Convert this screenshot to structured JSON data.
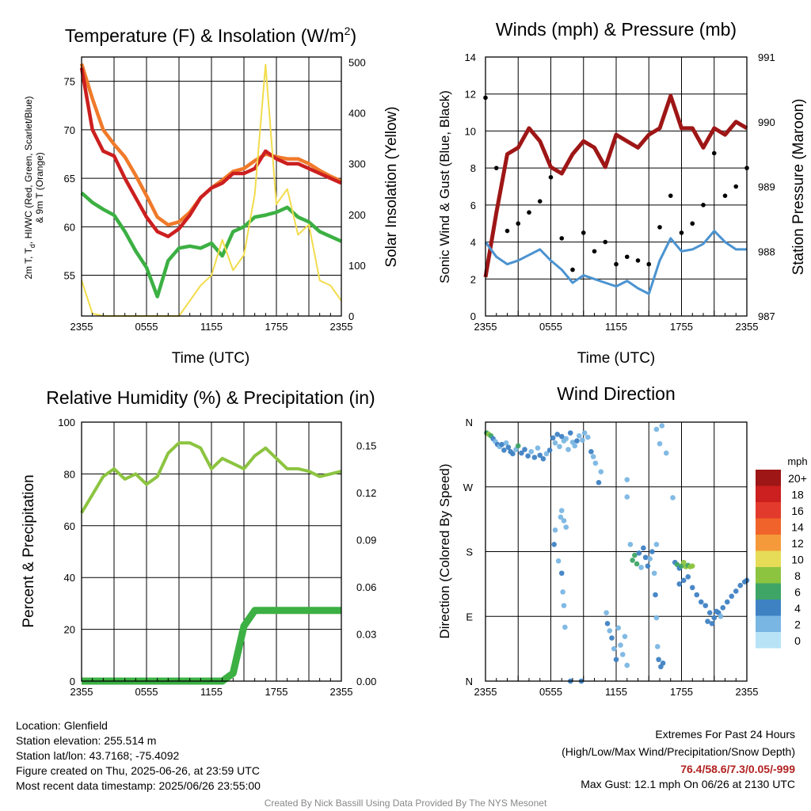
{
  "footer": {
    "location": "Location: Glenfield",
    "elevation": "Station elevation: 255.514 m",
    "latlon": "Station lat/lon: 43.7168; -75.4092",
    "created": "Figure created on Thu, 2025-06-26, at 23:59 UTC",
    "recent": "Most recent data timestamp: 2025/06/26 23:55:00",
    "extremes_title": "Extremes For Past 24 Hours",
    "extremes_sub": "(High/Low/Max Wind/Precipitation/Snow Depth)",
    "extremes_values": "76.4/58.6/7.3/0.05/-999",
    "max_gust": "Max Gust: 12.1 mph On 06/26 at 2130 UTC",
    "credit": "Created By Nick Bassill Using Data Provided By The NYS Mesonet"
  },
  "colors": {
    "temp": "#cc1f1f",
    "heat_index": "#3cb043",
    "nine_m": "#f07a2a",
    "solar": "#f2dc4c",
    "wind": "#4b93d0",
    "gust": "#000000",
    "pressure": "#9e1616",
    "rh": "#8cc440",
    "precip": "#3cb043"
  },
  "chart_data": [
    {
      "type": "line",
      "title": "Temperature (F) & Insolation (W/m²)",
      "xlabel": "Time (UTC)",
      "ylabel": "2m T, T_d, HI/WC (Red, Green, Scarlet/Blue) & 9m T (Orange)",
      "ylabel_parts": [
        "2m T, T",
        "d",
        ", HI/WC (Red, Green, Scarlet/Blue)",
        "& 9m T (Orange)"
      ],
      "y2label": "Solar Insolation (Yellow)",
      "x_ticks": [
        "2355",
        "0555",
        "1155",
        "1755",
        "2355"
      ],
      "ylim": [
        50.8,
        77.5
      ],
      "y_ticks": [
        55,
        60,
        65,
        70,
        75
      ],
      "y2lim": [
        0,
        510
      ],
      "y2_ticks": [
        0,
        100,
        200,
        300,
        400,
        500
      ],
      "x": [
        0,
        1,
        2,
        3,
        4,
        5,
        6,
        7,
        8,
        9,
        10,
        11,
        12,
        13,
        14,
        15,
        16,
        17,
        18,
        19,
        20,
        21,
        22,
        23,
        24
      ],
      "series": [
        {
          "name": "9m T (Orange)",
          "axis": "left",
          "values": [
            76.8,
            73.2,
            70.0,
            68.5,
            67.2,
            65.3,
            63.2,
            61.0,
            60.2,
            60.5,
            61.5,
            63.0,
            64.0,
            64.8,
            65.7,
            66.0,
            66.8,
            67.5,
            67.2,
            67.0,
            67.0,
            66.5,
            65.8,
            65.2,
            64.7
          ]
        },
        {
          "name": "2m T (Red)",
          "axis": "left",
          "values": [
            76.4,
            70.0,
            67.8,
            67.3,
            65.0,
            63.0,
            61.0,
            59.5,
            59.0,
            59.8,
            61.2,
            63.0,
            64.0,
            64.5,
            65.5,
            65.5,
            66.0,
            67.8,
            67.0,
            66.5,
            66.5,
            66.0,
            65.5,
            65.0,
            64.5
          ]
        },
        {
          "name": "T_d (Green)",
          "axis": "left",
          "values": [
            63.5,
            62.5,
            61.8,
            61.2,
            59.5,
            57.5,
            55.8,
            52.8,
            56.5,
            57.8,
            58.0,
            57.8,
            58.3,
            57.0,
            59.5,
            60.0,
            61.0,
            61.2,
            61.5,
            62.0,
            61.0,
            60.5,
            59.5,
            59.0,
            58.5
          ]
        },
        {
          "name": "Solar (Yellow)",
          "axis": "right",
          "values": [
            70,
            5,
            0,
            0,
            0,
            0,
            0,
            0,
            0,
            0,
            30,
            60,
            80,
            150,
            90,
            120,
            240,
            495,
            220,
            250,
            160,
            180,
            70,
            60,
            30
          ]
        }
      ]
    },
    {
      "type": "line",
      "title": "Winds (mph) & Pressure (mb)",
      "xlabel": "Time (UTC)",
      "ylabel": "Sonic Wind & Gust (Blue, Black)",
      "y2label": "Station Pressure (Maroon)",
      "x_ticks": [
        "2355",
        "0555",
        "1155",
        "1755",
        "2355"
      ],
      "ylim": [
        0,
        14
      ],
      "y_ticks": [
        0,
        2,
        4,
        6,
        8,
        10,
        12,
        14
      ],
      "y2lim": [
        987,
        991
      ],
      "y2_ticks": [
        987,
        988,
        989,
        990,
        991
      ],
      "x": [
        0,
        1,
        2,
        3,
        4,
        5,
        6,
        7,
        8,
        9,
        10,
        11,
        12,
        13,
        14,
        15,
        16,
        17,
        18,
        19,
        20,
        21,
        22,
        23,
        24
      ],
      "series": [
        {
          "name": "Pressure (Maroon)",
          "axis": "right",
          "values": [
            987.6,
            988.6,
            989.5,
            989.6,
            989.9,
            989.7,
            989.3,
            989.2,
            989.5,
            989.7,
            989.6,
            989.3,
            989.8,
            989.7,
            989.6,
            989.8,
            989.9,
            990.4,
            989.9,
            989.9,
            989.6,
            989.9,
            989.8,
            990.0,
            989.9
          ]
        },
        {
          "name": "Wind (Blue)",
          "axis": "left",
          "values": [
            4.0,
            3.2,
            2.8,
            3.0,
            3.3,
            3.6,
            3.0,
            2.5,
            1.8,
            2.2,
            2.0,
            1.8,
            1.6,
            1.9,
            1.5,
            1.2,
            3.0,
            4.2,
            3.5,
            3.6,
            3.9,
            4.6,
            4.0,
            3.6,
            3.6
          ]
        },
        {
          "name": "Gust (Black)",
          "axis": "left",
          "values": [
            11.8,
            8.0,
            4.6,
            5.0,
            5.6,
            6.2,
            7.5,
            4.2,
            2.5,
            4.5,
            3.5,
            4.0,
            2.8,
            3.2,
            3.0,
            2.8,
            4.8,
            6.5,
            4.5,
            5.0,
            6.0,
            8.8,
            6.5,
            7.0,
            8.0
          ]
        }
      ]
    },
    {
      "type": "line",
      "title": "Relative Humidity (%) & Precipitation (in)",
      "xlabel": "",
      "ylabel": "Percent & Precipitation",
      "x_ticks": [
        "2355",
        "0555",
        "1155",
        "1755",
        "2355"
      ],
      "ylim": [
        0,
        100
      ],
      "y_ticks": [
        0,
        20,
        40,
        60,
        80,
        100
      ],
      "y2lim": [
        0,
        0.165
      ],
      "y2_ticks": [
        "0.00",
        "0.03",
        "0.06",
        "0.09",
        "0.12",
        "0.15"
      ],
      "x": [
        0,
        1,
        2,
        3,
        4,
        5,
        6,
        7,
        8,
        9,
        10,
        11,
        12,
        13,
        14,
        15,
        16,
        17,
        18,
        19,
        20,
        21,
        22,
        23,
        24
      ],
      "series": [
        {
          "name": "RH (Green)",
          "axis": "left",
          "values": [
            65,
            72,
            79,
            82,
            78,
            80,
            76,
            79,
            88,
            92,
            92,
            90,
            82,
            86,
            84,
            82,
            87,
            90,
            86,
            82,
            82,
            81,
            79,
            80,
            81
          ]
        },
        {
          "name": "Precip (Green)",
          "axis": "right",
          "values": [
            0,
            0,
            0,
            0,
            0,
            0,
            0,
            0,
            0,
            0,
            0,
            0,
            0,
            0,
            0.005,
            0.035,
            0.045,
            0.045,
            0.045,
            0.045,
            0.045,
            0.045,
            0.045,
            0.045,
            0.045
          ]
        }
      ]
    },
    {
      "type": "scatter",
      "title": "Wind Direction",
      "xlabel": "",
      "ylabel": "Direction (Colored By Speed)",
      "x_ticks": [
        "2355",
        "0555",
        "1155",
        "1755",
        "2355"
      ],
      "y_ticks": [
        "N",
        "E",
        "S",
        "W",
        "N"
      ],
      "ylim": [
        0,
        360
      ],
      "legend": {
        "title": "mph",
        "labels": [
          "20+",
          "18",
          "16",
          "14",
          "12",
          "10",
          "8",
          "6",
          "4",
          "2",
          "0"
        ],
        "colors": [
          "#9e1616",
          "#cc1f1f",
          "#e23a2c",
          "#f0632a",
          "#f59a3a",
          "#e6dc57",
          "#8cc440",
          "#3ea566",
          "#3f82c4",
          "#7ab6e3",
          "#b8e3f7"
        ]
      },
      "points": [
        [
          0.1,
          345,
          6
        ],
        [
          0.3,
          343,
          7
        ],
        [
          0.5,
          341,
          5
        ],
        [
          0.7,
          337,
          3
        ],
        [
          0.9,
          333,
          2
        ],
        [
          1.1,
          329,
          3
        ],
        [
          1.3,
          326,
          2
        ],
        [
          1.5,
          329,
          4
        ],
        [
          1.7,
          321,
          3
        ],
        [
          1.9,
          331,
          2
        ],
        [
          2.1,
          325,
          3
        ],
        [
          2.3,
          319,
          4
        ],
        [
          2.5,
          316,
          3
        ],
        [
          2.8,
          322,
          2
        ],
        [
          3.0,
          327,
          5
        ],
        [
          3.3,
          317,
          3
        ],
        [
          3.6,
          322,
          4
        ],
        [
          3.9,
          313,
          3
        ],
        [
          4.2,
          319,
          2
        ],
        [
          4.5,
          311,
          4
        ],
        [
          4.8,
          324,
          2
        ],
        [
          5.0,
          314,
          3
        ],
        [
          5.3,
          309,
          4
        ],
        [
          5.6,
          316,
          2
        ],
        [
          5.9,
          321,
          3
        ],
        [
          6.2,
          338,
          3
        ],
        [
          6.4,
          331,
          2
        ],
        [
          6.6,
          343,
          4
        ],
        [
          6.8,
          326,
          1
        ],
        [
          7.0,
          340,
          3
        ],
        [
          7.2,
          334,
          2
        ],
        [
          7.4,
          337,
          2
        ],
        [
          7.6,
          322,
          1
        ],
        [
          7.8,
          345,
          3
        ],
        [
          8.0,
          332,
          1
        ],
        [
          8.2,
          327,
          2
        ],
        [
          8.4,
          334,
          3
        ],
        [
          8.6,
          341,
          2
        ],
        [
          8.9,
          335,
          1
        ],
        [
          9.1,
          345,
          2
        ],
        [
          9.4,
          339,
          2
        ],
        [
          9.7,
          319,
          3
        ],
        [
          9.9,
          312,
          2
        ],
        [
          10.1,
          303,
          1
        ],
        [
          10.4,
          276,
          3
        ],
        [
          10.6,
          291,
          2
        ],
        [
          6.3,
          190,
          3
        ],
        [
          6.4,
          210,
          1
        ],
        [
          6.7,
          167,
          2
        ],
        [
          6.9,
          228,
          2
        ],
        [
          7.0,
          237,
          1
        ],
        [
          7.2,
          223,
          2
        ],
        [
          7.4,
          214,
          1
        ],
        [
          7.0,
          150,
          3
        ],
        [
          7.1,
          124,
          2
        ],
        [
          7.2,
          105,
          1
        ],
        [
          7.3,
          75,
          1
        ],
        [
          7.8,
          0,
          4
        ],
        [
          8.8,
          0,
          4
        ],
        [
          11.1,
          95,
          2
        ],
        [
          11.2,
          80,
          3
        ],
        [
          11.4,
          70,
          2
        ],
        [
          11.6,
          60,
          3
        ],
        [
          11.8,
          45,
          2
        ],
        [
          12.0,
          30,
          3
        ],
        [
          12.2,
          74,
          2
        ],
        [
          12.4,
          50,
          2
        ],
        [
          12.6,
          37,
          2
        ],
        [
          12.8,
          62,
          2
        ],
        [
          13.0,
          22,
          1
        ],
        [
          13.0,
          280,
          2
        ],
        [
          13.0,
          256,
          1
        ],
        [
          13.3,
          190,
          2
        ],
        [
          13.5,
          168,
          5
        ],
        [
          13.7,
          175,
          6
        ],
        [
          13.9,
          163,
          5
        ],
        [
          14.1,
          178,
          3
        ],
        [
          14.3,
          158,
          2
        ],
        [
          14.5,
          185,
          3
        ],
        [
          14.7,
          172,
          3
        ],
        [
          14.9,
          160,
          4
        ],
        [
          15.1,
          170,
          2
        ],
        [
          15.3,
          180,
          3
        ],
        [
          15.5,
          150,
          2
        ],
        [
          15.7,
          190,
          2
        ],
        [
          15.6,
          120,
          3
        ],
        [
          15.7,
          88,
          2
        ],
        [
          15.8,
          48,
          2
        ],
        [
          15.9,
          30,
          3
        ],
        [
          16.1,
          20,
          3
        ],
        [
          16.3,
          25,
          4
        ],
        [
          15.7,
          350,
          2
        ],
        [
          16.2,
          355,
          2
        ],
        [
          16.0,
          330,
          1
        ],
        [
          16.6,
          317,
          2
        ],
        [
          17.2,
          255,
          1
        ],
        [
          17.4,
          165,
          4
        ],
        [
          17.6,
          162,
          5
        ],
        [
          17.8,
          157,
          4
        ],
        [
          18.0,
          160,
          6
        ],
        [
          18.2,
          165,
          7
        ],
        [
          18.4,
          159,
          8
        ],
        [
          18.6,
          161,
          6
        ],
        [
          18.8,
          159,
          7
        ],
        [
          19.0,
          160,
          8
        ],
        [
          17.8,
          135,
          3
        ],
        [
          18.2,
          140,
          4
        ],
        [
          18.6,
          145,
          3
        ],
        [
          19.0,
          130,
          4
        ],
        [
          19.4,
          120,
          3
        ],
        [
          19.8,
          110,
          4
        ],
        [
          20.2,
          105,
          3
        ],
        [
          20.6,
          95,
          4
        ],
        [
          21.0,
          88,
          3
        ],
        [
          21.4,
          95,
          4
        ],
        [
          21.8,
          102,
          3
        ],
        [
          22.2,
          110,
          4
        ],
        [
          22.6,
          118,
          3
        ],
        [
          23.0,
          125,
          4
        ],
        [
          23.4,
          133,
          3
        ],
        [
          23.8,
          138,
          4
        ],
        [
          20.4,
          83,
          3
        ],
        [
          20.8,
          80,
          4
        ],
        [
          21.2,
          97,
          3
        ],
        [
          21.6,
          90,
          2
        ],
        [
          24.0,
          140,
          4
        ]
      ]
    }
  ]
}
